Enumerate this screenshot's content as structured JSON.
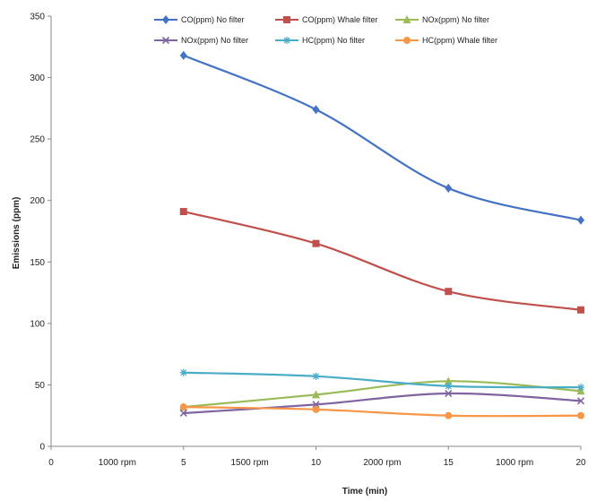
{
  "chart_data": {
    "type": "line",
    "title": "",
    "xlabel": "Time (min)",
    "ylabel": "Emissions (ppm)",
    "xlim": [
      0,
      20
    ],
    "ylim": [
      0,
      350
    ],
    "x_ticks": [
      0,
      5,
      10,
      15,
      20
    ],
    "y_ticks": [
      0,
      50,
      100,
      150,
      200,
      250,
      300,
      350
    ],
    "grid": false,
    "legend_position": "top",
    "annotations": [
      {
        "text": "1000 rpm",
        "x": 2.5
      },
      {
        "text": "1500 rpm",
        "x": 7.5
      },
      {
        "text": "2000 rpm",
        "x": 12.5
      },
      {
        "text": "1000 rpm",
        "x": 17.5
      }
    ],
    "x": [
      5,
      10,
      15,
      20
    ],
    "series": [
      {
        "name": "CO(ppm) No filter",
        "values": [
          318,
          274,
          210,
          184
        ],
        "color": "#4472C4",
        "marker": "diamond"
      },
      {
        "name": "CO(ppm) Whale filter",
        "values": [
          191,
          165,
          126,
          111
        ],
        "color": "#C0504D",
        "marker": "square"
      },
      {
        "name": "NOx(ppm) No filter",
        "values": [
          32,
          42,
          53,
          45
        ],
        "color": "#9BBB59",
        "marker": "triangle"
      },
      {
        "name": "NOx(ppm) No filter",
        "values": [
          27,
          34,
          43,
          37
        ],
        "color": "#8064A2",
        "marker": "x"
      },
      {
        "name": "HC(ppm) No filter",
        "values": [
          60,
          57,
          49,
          48
        ],
        "color": "#4BACC6",
        "marker": "star"
      },
      {
        "name": "HC(ppm) Whale filter",
        "values": [
          32,
          30,
          25,
          25
        ],
        "color": "#F79646",
        "marker": "circle"
      }
    ]
  }
}
